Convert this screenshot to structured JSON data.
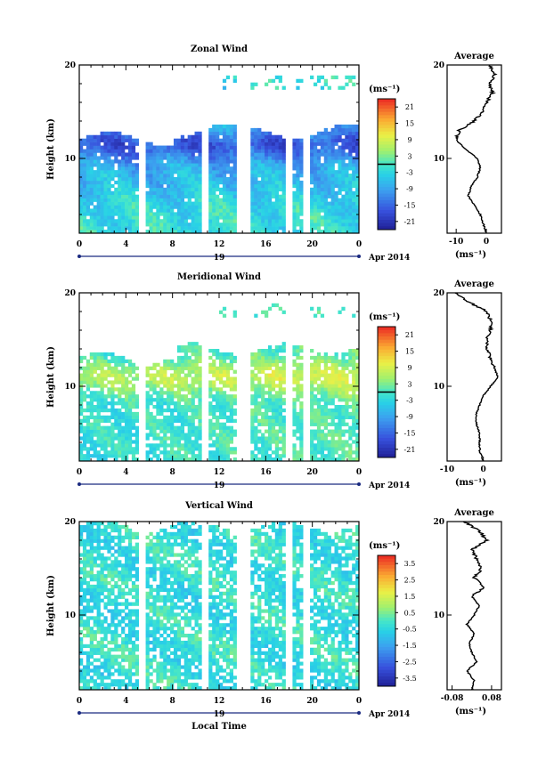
{
  "chart_data": [
    {
      "type": "heatmap",
      "title": "Zonal Wind",
      "ylabel": "Height (km)",
      "xlabel": "",
      "unit_label": "(ms⁻¹)",
      "x_ticks": [
        "0",
        "4",
        "8",
        "12",
        "16",
        "20",
        "0"
      ],
      "y_ticks": [
        "20",
        "10"
      ],
      "xlim": [
        0,
        24
      ],
      "ylim": [
        2,
        20
      ],
      "day_label": "19",
      "month_label": "Apr 2014",
      "colorbar": {
        "ticks": [
          "21",
          "15",
          "9",
          "3",
          "-3",
          "-9",
          "-15",
          "-21"
        ],
        "range": [
          -24,
          24
        ],
        "zero_marker": 0
      },
      "data_range": [
        -24,
        12
      ],
      "gaps_hours": [
        [
          5.2,
          5.8
        ],
        [
          10.6,
          11.2
        ],
        [
          13.5,
          14.7
        ],
        [
          17.7,
          18.2
        ],
        [
          19.2,
          19.7
        ]
      ],
      "coverage_top_km": 12,
      "average": {
        "title": "Average",
        "xlabel": "(ms⁻¹)",
        "x_ticks": [
          "-10",
          "0"
        ],
        "y_ticks": [
          "20",
          "10"
        ],
        "xlim": [
          -13,
          5
        ],
        "height_km": [
          2,
          3,
          4,
          5,
          6,
          7,
          8,
          9,
          10,
          11,
          12,
          13,
          14,
          15,
          16,
          17,
          18,
          19,
          20
        ],
        "values": [
          0,
          -1,
          -2,
          -4,
          -6,
          -5,
          -3,
          -2,
          -3,
          -7,
          -10,
          -9,
          -4,
          -1,
          0,
          2,
          1,
          3,
          1
        ]
      }
    },
    {
      "type": "heatmap",
      "title": "Meridional Wind",
      "ylabel": "Height (km)",
      "xlabel": "",
      "unit_label": "(ms⁻¹)",
      "x_ticks": [
        "0",
        "4",
        "8",
        "12",
        "16",
        "20",
        "0"
      ],
      "y_ticks": [
        "20",
        "10"
      ],
      "xlim": [
        0,
        24
      ],
      "ylim": [
        2,
        20
      ],
      "day_label": "19",
      "month_label": "Apr 2014",
      "colorbar": {
        "ticks": [
          "21",
          "15",
          "9",
          "3",
          "-3",
          "-9",
          "-15",
          "-21"
        ],
        "range": [
          -24,
          24
        ],
        "zero_marker": 0
      },
      "data_range": [
        -8,
        10
      ],
      "gaps_hours": [
        [
          5.2,
          5.8
        ],
        [
          10.6,
          11.2
        ],
        [
          13.5,
          14.7
        ],
        [
          17.7,
          18.2
        ],
        [
          19.2,
          19.7
        ]
      ],
      "coverage_top_km": 13,
      "average": {
        "title": "Average",
        "xlabel": "(ms⁻¹)",
        "x_ticks": [
          "-10",
          "0"
        ],
        "y_ticks": [
          "20",
          "10"
        ],
        "xlim": [
          -10,
          5
        ],
        "height_km": [
          2,
          3,
          4,
          5,
          6,
          7,
          8,
          9,
          10,
          11,
          12,
          13,
          14,
          15,
          16,
          17,
          18,
          19,
          20
        ],
        "values": [
          0,
          -1,
          -1,
          -1,
          -2,
          -2,
          -1,
          0,
          2,
          4,
          3,
          2,
          1,
          1,
          2,
          2,
          1,
          -4,
          -8
        ]
      }
    },
    {
      "type": "heatmap",
      "title": "Vertical Wind",
      "ylabel": "Height (km)",
      "xlabel": "Local Time",
      "unit_label": "(ms⁻¹)",
      "x_ticks": [
        "0",
        "4",
        "8",
        "12",
        "16",
        "20",
        "0"
      ],
      "y_ticks": [
        "20",
        "10"
      ],
      "xlim": [
        0,
        24
      ],
      "ylim": [
        2,
        20
      ],
      "day_label": "19",
      "month_label": "Apr 2014",
      "colorbar": {
        "ticks": [
          "3.5",
          "2.5",
          "1.5",
          "0.5",
          "-0.5",
          "-1.5",
          "-2.5",
          "-3.5"
        ],
        "range": [
          -4,
          4
        ],
        "zero_marker": null
      },
      "data_range": [
        -1,
        0.6
      ],
      "gaps_hours": [
        [
          5.2,
          5.8
        ],
        [
          10.6,
          11.2
        ],
        [
          13.5,
          14.7
        ],
        [
          17.7,
          18.2
        ],
        [
          19.2,
          19.7
        ]
      ],
      "coverage_top_km": 19.5,
      "average": {
        "title": "Average",
        "xlabel": "(ms⁻¹)",
        "x_ticks": [
          "-0.08",
          "0.08"
        ],
        "y_ticks": [
          "20",
          "10"
        ],
        "xlim": [
          -0.1,
          0.12
        ],
        "height_km": [
          2,
          3,
          4,
          5,
          6,
          7,
          8,
          9,
          10,
          11,
          12,
          13,
          14,
          15,
          16,
          17,
          18,
          19,
          20
        ],
        "values": [
          0,
          0.01,
          -0.02,
          0.02,
          0.0,
          -0.01,
          0.01,
          -0.02,
          0.01,
          0.03,
          0.0,
          0.05,
          0.01,
          0.04,
          0.02,
          0.0,
          0.06,
          0.03,
          -0.03
        ]
      }
    }
  ]
}
